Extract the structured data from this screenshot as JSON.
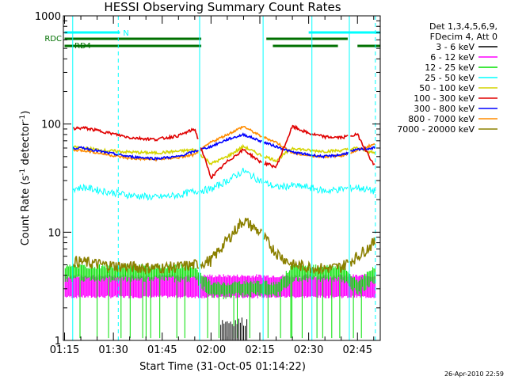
{
  "chart_data": {
    "type": "line",
    "title": "HESSI Observing Summary Count Rates",
    "xlabel": "Start Time (31-Oct-05 01:14:22)",
    "ylabel_main": "Count Rate (s",
    "ylabel_sup1": "-1",
    "ylabel_mid": " detector",
    "ylabel_sup2": "-1",
    "ylabel_end": ")",
    "yscale": "log",
    "ylim": [
      1,
      1000
    ],
    "xlim_minutes": [
      -0.37,
      97
    ],
    "y_tick_labels": [
      {
        "value": 1,
        "label": "1"
      },
      {
        "value": 10,
        "label": "10"
      },
      {
        "value": 100,
        "label": "100"
      },
      {
        "value": 1000,
        "label": "1000"
      }
    ],
    "x_tick_labels": [
      {
        "value": 0,
        "label": "01:15"
      },
      {
        "value": 15,
        "label": "01:30"
      },
      {
        "value": 30,
        "label": "01:45"
      },
      {
        "value": 45,
        "label": "02:00"
      },
      {
        "value": 60,
        "label": "02:15"
      },
      {
        "value": 75,
        "label": "02:30"
      },
      {
        "value": 90,
        "label": "02:45"
      }
    ],
    "legend_header": [
      "Det 1,3,4,5,6,9,",
      "FDecim 4, Att 0"
    ],
    "legend_placement": "right",
    "series": [
      {
        "name": "3 - 6 keV",
        "color": "#000000"
      },
      {
        "name": "6 - 12 keV",
        "color": "#ff00ff"
      },
      {
        "name": "12 - 25 keV",
        "color": "#00e000"
      },
      {
        "name": "25 - 50 keV",
        "color": "#00ffff"
      },
      {
        "name": "50 - 100 keV",
        "color": "#d4d400"
      },
      {
        "name": "100 - 300 keV",
        "color": "#e00000"
      },
      {
        "name": "300 - 800 keV",
        "color": "#0000ff"
      },
      {
        "name": "800 - 7000 keV",
        "color": "#ff8c00"
      },
      {
        "name": "7000 - 20000 keV",
        "color": "#8b8000"
      }
    ],
    "approximate_profiles": {
      "x_minutes": [
        0,
        6,
        12,
        20,
        28,
        35,
        40,
        45,
        50,
        55,
        60,
        65,
        70,
        75,
        80,
        85,
        90,
        95
      ],
      "100 - 300 keV": [
        90,
        92,
        85,
        75,
        72,
        78,
        90,
        32,
        45,
        58,
        45,
        40,
        95,
        82,
        76,
        75,
        80,
        42
      ],
      "300 - 800 keV": [
        60,
        60,
        55,
        50,
        48,
        50,
        56,
        62,
        72,
        80,
        70,
        62,
        55,
        52,
        50,
        52,
        58,
        60
      ],
      "800 - 7000 keV": [
        58,
        57,
        53,
        48,
        47,
        49,
        52,
        68,
        80,
        95,
        78,
        68,
        54,
        51,
        50,
        51,
        57,
        65
      ],
      "50 - 100 keV": [
        62,
        60,
        57,
        55,
        54,
        56,
        58,
        43,
        50,
        62,
        52,
        46,
        60,
        57,
        56,
        57,
        60,
        54
      ],
      "25 - 50 keV": [
        25,
        26,
        24,
        22,
        21,
        22,
        24,
        25,
        30,
        37,
        30,
        26,
        27,
        26,
        24,
        25,
        26,
        24
      ],
      "7000 - 20000 keV": [
        5.5,
        5.3,
        5,
        4.8,
        4.7,
        4.8,
        5,
        5.5,
        8.5,
        13,
        10,
        6.5,
        5,
        4.8,
        4.6,
        4.8,
        6,
        8
      ],
      "12 - 25 keV": [
        4.6,
        4.6,
        4.6,
        4.6,
        4.6,
        4.6,
        4.6,
        3.2,
        3.2,
        3.3,
        3.3,
        3.2,
        4.6,
        4.6,
        4.6,
        4.6,
        3.4,
        4.4
      ],
      "6 - 12 keV": [
        3.2,
        3.2,
        3.2,
        3.2,
        3.2,
        3.2,
        3.2,
        3.2,
        3.2,
        3.2,
        3.2,
        3.2,
        3.2,
        3.2,
        3.2,
        3.2,
        3.2,
        3.2
      ]
    },
    "flag_rows": [
      {
        "label": "N",
        "color": "#00ffff",
        "segments": [
          [
            0,
            17
          ],
          [
            75,
            97
          ]
        ]
      },
      {
        "label": "RDC",
        "color": "#007000",
        "segments": [
          [
            0,
            42
          ],
          [
            62,
            87
          ]
        ]
      },
      {
        "label": "RD4",
        "color": "#007000",
        "segments": [
          [
            0,
            42
          ],
          [
            64,
            84
          ],
          [
            90,
            97
          ]
        ]
      }
    ],
    "vertical_markers": [
      {
        "x_minutes": 2.5,
        "style": "solid"
      },
      {
        "x_minutes": 16.5,
        "style": "dashed"
      },
      {
        "x_minutes": 41.5,
        "style": "solid"
      },
      {
        "x_minutes": 61,
        "style": "solid"
      },
      {
        "x_minutes": 76,
        "style": "solid"
      },
      {
        "x_minutes": 87.5,
        "style": "solid"
      },
      {
        "x_minutes": 95.5,
        "style": "dashed"
      }
    ]
  },
  "timestamp": "26-Apr-2010 22:59"
}
